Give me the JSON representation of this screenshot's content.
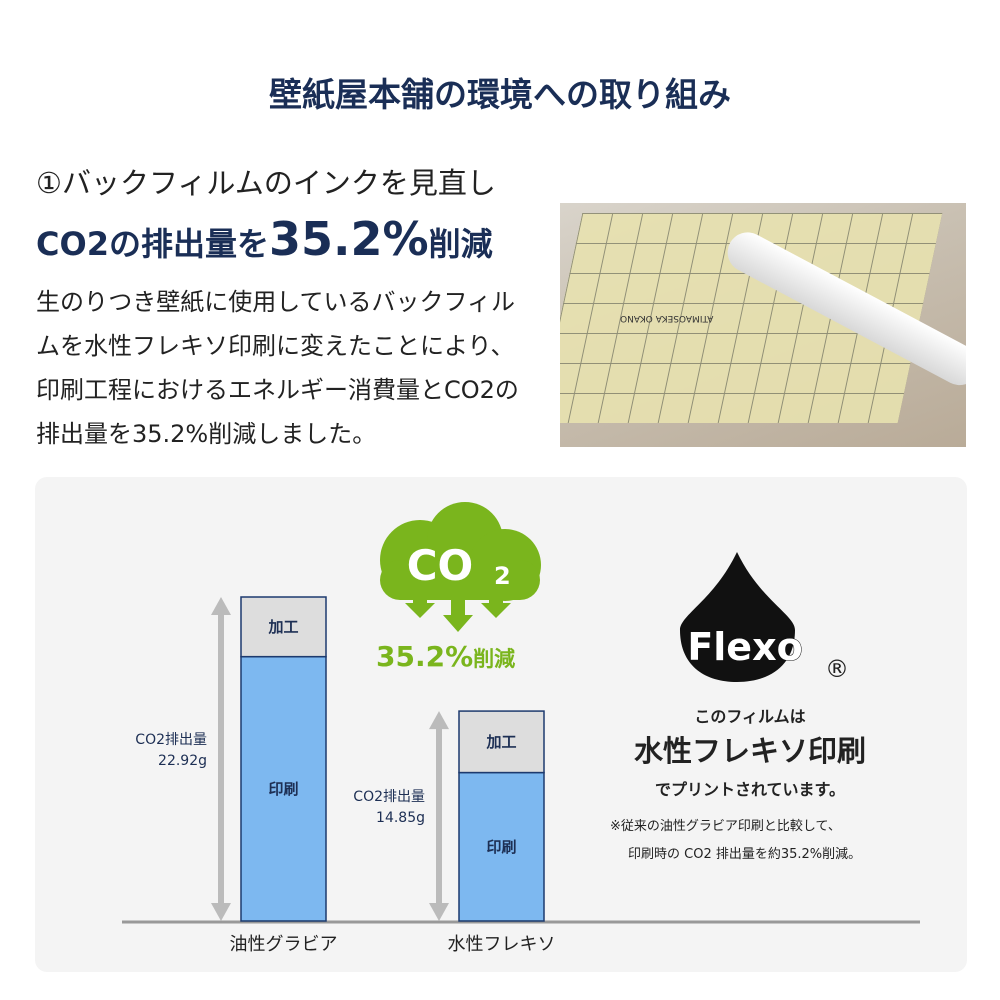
{
  "header": {
    "title": "壁紙屋本舗の環境への取り組み"
  },
  "section": {
    "number_heading": "①バックフィルムのインクを見直し",
    "headline_prefix": "CO2の排出量を",
    "headline_value": "35.2%",
    "headline_suffix": "削減",
    "body": "生のりつき壁紙に使用しているバックフィルムを水性フレキソ印刷に変えたことにより、印刷工程におけるエネルギー消費量とCO2の排出量を35.2%削減しました。"
  },
  "photo": {
    "print_text": "ATIMAOSEKA OKANO"
  },
  "co2_badge": {
    "cloud_text": "CO",
    "cloud_sub": "2",
    "reduction_value": "35.2%",
    "reduction_suffix": "削減",
    "color": "#7ab51d"
  },
  "flexo": {
    "logo_text": "Flexo",
    "registered": "®",
    "line1": "このフィルムは",
    "line2": "水性フレキソ印刷",
    "line3": "でプリントされています。",
    "note1": "※従来の油性グラビア印刷と比較して、",
    "note2": "印刷時の CO2 排出量を約35.2%削減。"
  },
  "chart_data": {
    "type": "bar",
    "stacked": true,
    "categories": [
      "油性グラビア",
      "水性フレキソ"
    ],
    "totals": [
      22.92,
      14.85
    ],
    "total_labels": [
      [
        "CO2排出量",
        "22.92g"
      ],
      [
        "CO2排出量",
        "14.85g"
      ]
    ],
    "series": [
      {
        "name": "印刷",
        "values": [
          18.7,
          10.5
        ],
        "color": "#7db8f0"
      },
      {
        "name": "加工",
        "values": [
          4.22,
          4.35
        ],
        "color": "#dddddd"
      }
    ],
    "unit": "g",
    "ylim": [
      0,
      23
    ],
    "grid": false,
    "bar_border": "#1d3a6e"
  }
}
